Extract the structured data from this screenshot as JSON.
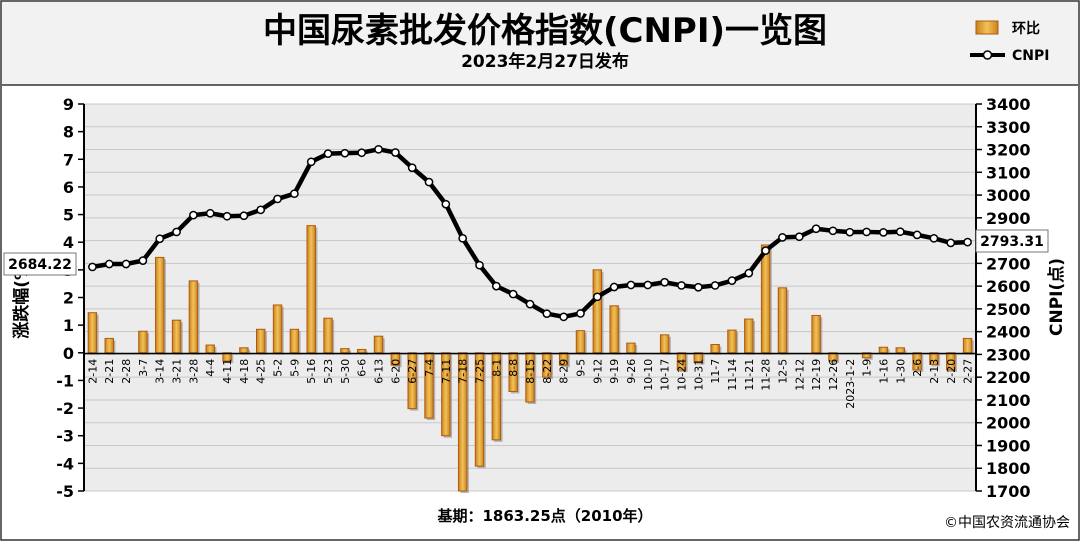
{
  "chart_data": {
    "type": "bar",
    "title": "中国尿素批发价格指数(CNPI)一览图",
    "subtitle": "2023年2月27日发布",
    "ylabel_left": "涨跌幅(%)",
    "ylabel_right": "CNPI(点)",
    "ylim_left": [
      -5,
      9
    ],
    "ylim_right": [
      1700,
      3400
    ],
    "yticks_left": [
      "9",
      "8",
      "7",
      "6",
      "5",
      "4",
      "3",
      "2",
      "1",
      "0",
      "-1",
      "-2",
      "-3",
      "-4",
      "-5"
    ],
    "yticks_right": [
      "3400",
      "3300",
      "3200",
      "3100",
      "3000",
      "2900",
      "2800",
      "2700",
      "2600",
      "2500",
      "2400",
      "2300",
      "2200",
      "2100",
      "2000",
      "1900",
      "1800",
      "1700"
    ],
    "categories": [
      "2-14",
      "2-21",
      "2-28",
      "3-7",
      "3-14",
      "3-21",
      "3-28",
      "4-4",
      "4-11",
      "4-18",
      "4-25",
      "5-2",
      "5-9",
      "5-16",
      "5-23",
      "5-30",
      "6-6",
      "6-13",
      "6-20",
      "6-27",
      "7-4",
      "7-11",
      "7-18",
      "7-25",
      "8-1",
      "8-8",
      "8-15",
      "8-22",
      "8-29",
      "9-5",
      "9-12",
      "9-19",
      "9-26",
      "10-10",
      "10-17",
      "10-24",
      "10-31",
      "11-7",
      "11-14",
      "11-21",
      "11-28",
      "12-5",
      "12-12",
      "12-19",
      "12-26",
      "2023-1-2",
      "1-9",
      "1-16",
      "1-30",
      "2-6",
      "2-13",
      "2-20",
      "2-27"
    ],
    "series": [
      {
        "name": "环比",
        "axis": "left",
        "type": "bar",
        "values": [
          1.45,
          0.52,
          0.0,
          0.78,
          3.45,
          1.18,
          2.6,
          0.28,
          -0.3,
          0.18,
          0.85,
          1.73,
          0.85,
          4.6,
          1.25,
          0.15,
          0.12,
          0.6,
          -0.45,
          -2.02,
          -2.36,
          -3.0,
          -5.0,
          -4.1,
          -3.15,
          -1.4,
          -1.78,
          -0.88,
          -0.45,
          0.8,
          3.0,
          1.7,
          0.35,
          0.0,
          0.65,
          -0.62,
          -0.35,
          0.3,
          0.82,
          1.22,
          3.9,
          2.35,
          0.0,
          1.35,
          -0.3,
          0.0,
          -0.18,
          0.2,
          0.18,
          -0.62,
          -0.42,
          -0.62,
          0.52
        ]
      },
      {
        "name": "CNPI",
        "axis": "right",
        "type": "line",
        "values": [
          2684.22,
          2697,
          2697,
          2712,
          2808,
          2838,
          2912,
          2920,
          2907,
          2909,
          2935,
          2983,
          3006,
          3146,
          3182,
          3184,
          3186,
          3201,
          3187,
          3120,
          3057,
          2960,
          2810,
          2692,
          2600,
          2565,
          2521,
          2479,
          2465,
          2480,
          2553,
          2596,
          2605,
          2605,
          2617,
          2603,
          2595,
          2603,
          2624,
          2657,
          2756,
          2814,
          2817,
          2852,
          2843,
          2837,
          2838,
          2836,
          2839,
          2825,
          2810,
          2790,
          2793.31
        ]
      }
    ],
    "start_label": "2684.22",
    "end_label": "2793.31",
    "legend": {
      "position": "top-right"
    },
    "grid": true
  },
  "footer": {
    "base_label": "基期：1863.25点（2010年）",
    "source": "©中国农资流通协会"
  },
  "colors": {
    "bar_fill": "#e0a82e",
    "bar_edge": "#b05a10",
    "line": "#000000",
    "grid": "#c8c8c8",
    "plot_bg": "#ececec",
    "header_bg": "#f2f2f2"
  }
}
